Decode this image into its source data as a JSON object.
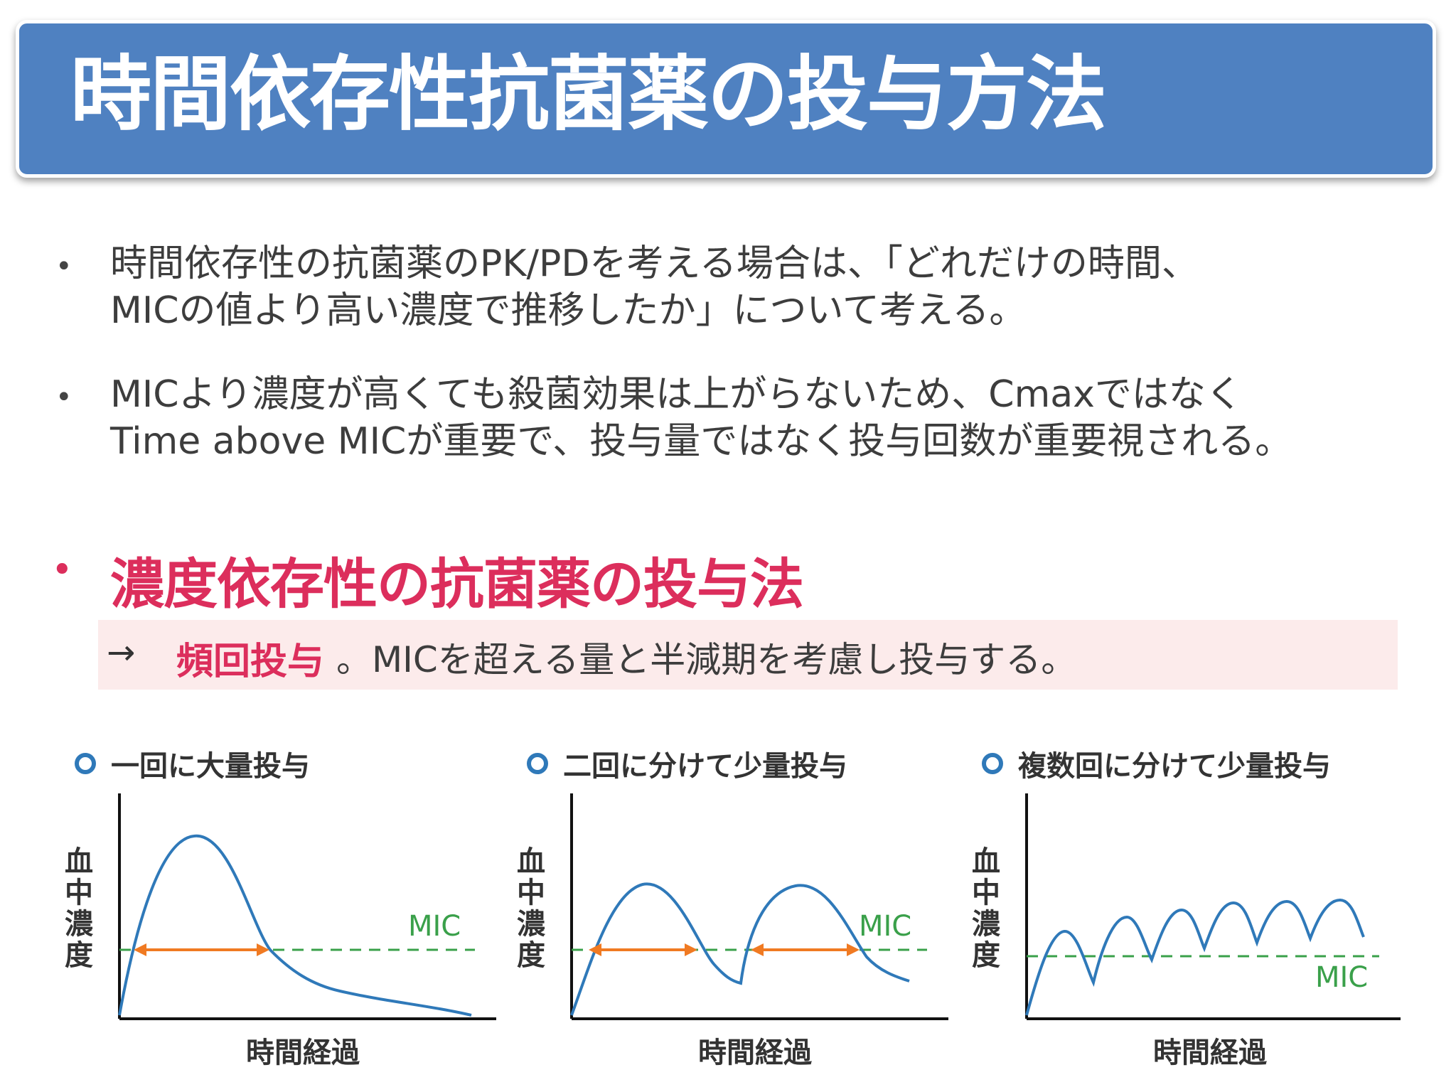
{
  "title": "時間依存性抗菌薬の投与方法",
  "bullets": [
    {
      "line1": "時間依存性の抗菌薬のPK/PDを考える場合は、「どれだけの時間、",
      "line2": "MICの値より高い濃度で推移したか」について考える。"
    },
    {
      "line1": "MICより濃度が高くても殺菌効果は上がらないため、Cmaxではなく",
      "line2": "Time above MICが重要で、投与量ではなく投与回数が重要視される。"
    }
  ],
  "highlight": {
    "heading": "濃度依存性の抗菌薬の投与法",
    "arrow": "→",
    "strong": "頻回投与",
    "rest": "。MICを超える量と半減期を考慮し投与する。"
  },
  "panels": [
    {
      "title": "一回に大量投与",
      "ylabel": "血中濃度",
      "xlabel": "時間経過",
      "mic_label": "MIC"
    },
    {
      "title": "二回に分けて少量投与",
      "ylabel": "血中濃度",
      "xlabel": "時間経過",
      "mic_label": "MIC"
    },
    {
      "title": "複数回に分けて少量投与",
      "ylabel": "血中濃度",
      "xlabel": "時間経過",
      "mic_label": "MIC"
    }
  ],
  "colors": {
    "banner": "#4f81c1",
    "accent_pink": "#dc2e5c",
    "curve": "#2f79b9",
    "mic_line": "#3aa04a",
    "arrow": "#f07a22"
  }
}
